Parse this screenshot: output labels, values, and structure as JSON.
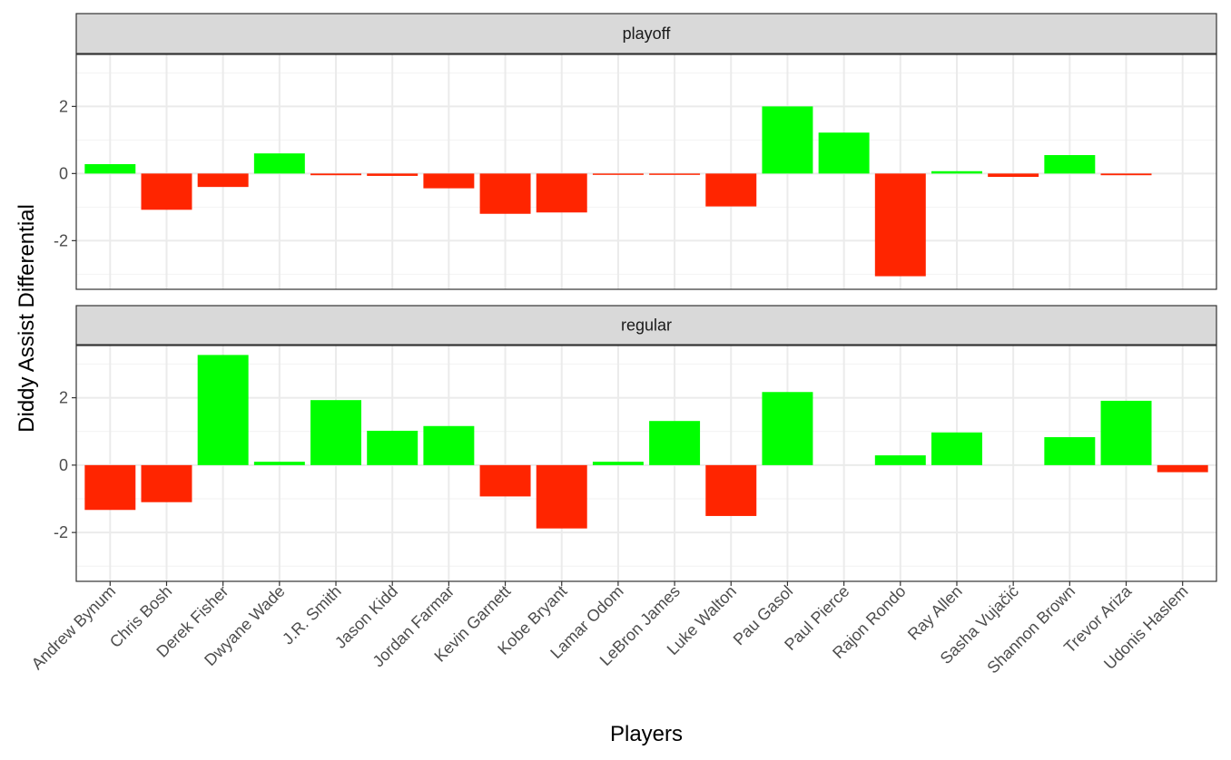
{
  "chart_data": {
    "type": "bar",
    "facet_by": "season type",
    "xlabel": "Players",
    "ylabel": "Diddy Assist Differential",
    "ylim": [
      -3.45,
      3.55
    ],
    "y_ticks": [
      -2,
      0,
      2
    ],
    "grid": true,
    "legend": "none",
    "colors": {
      "positive": "#00ff00",
      "negative": "#ff2500"
    },
    "categories": [
      "Andrew Bynum",
      "Chris Bosh",
      "Derek Fisher",
      "Dwyane Wade",
      "J.R. Smith",
      "Jason Kidd",
      "Jordan Farmar",
      "Kevin Garnett",
      "Kobe Bryant",
      "Lamar Odom",
      "LeBron James",
      "Luke Walton",
      "Pau Gasol",
      "Paul Pierce",
      "Rajon Rondo",
      "Ray Allen",
      "Sasha Vujačić",
      "Shannon Brown",
      "Trevor Ariza",
      "Udonis Haslem"
    ],
    "panels": [
      {
        "label": "playoff",
        "values": [
          0.28,
          -1.08,
          -0.4,
          0.6,
          -0.05,
          -0.07,
          -0.44,
          -1.2,
          -1.16,
          -0.04,
          -0.04,
          -0.98,
          2.0,
          1.22,
          -3.06,
          0.07,
          -0.1,
          0.55,
          -0.05,
          null
        ]
      },
      {
        "label": "regular",
        "values": [
          -1.33,
          -1.1,
          3.27,
          0.1,
          1.93,
          1.02,
          1.16,
          -0.93,
          -1.88,
          0.1,
          1.31,
          -1.51,
          2.17,
          0.0,
          0.29,
          0.97,
          0.0,
          0.83,
          1.91,
          -0.21
        ]
      }
    ]
  }
}
